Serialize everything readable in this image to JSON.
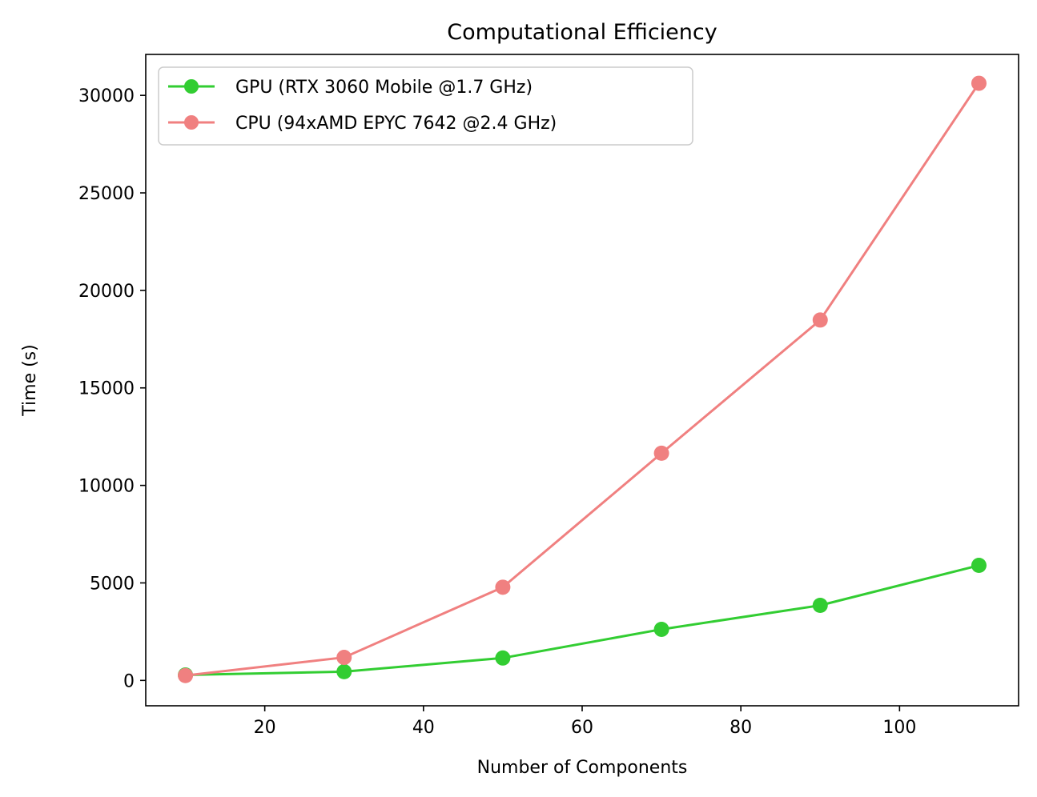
{
  "chart_data": {
    "type": "line",
    "title": "Computational Efficiency",
    "xlabel": "Number of Components",
    "ylabel": "Time (s)",
    "xlim": [
      5,
      115
    ],
    "ylim": [
      -1300,
      32100
    ],
    "xticks": [
      20,
      40,
      60,
      80,
      100
    ],
    "yticks": [
      0,
      5000,
      10000,
      15000,
      20000,
      25000,
      30000
    ],
    "grid": false,
    "legend_position": "upper-left",
    "x": [
      10,
      30,
      50,
      70,
      90,
      110
    ],
    "series": [
      {
        "name": "GPU (RTX 3060 Mobile @1.7 GHz)",
        "color": "#32cd32",
        "values": [
          280,
          450,
          1150,
          2620,
          3850,
          5900
        ]
      },
      {
        "name": "CPU (94xAMD EPYC 7642 @2.4 GHz)",
        "color": "#f08080",
        "values": [
          250,
          1180,
          4780,
          11650,
          18480,
          30620
        ]
      }
    ]
  }
}
